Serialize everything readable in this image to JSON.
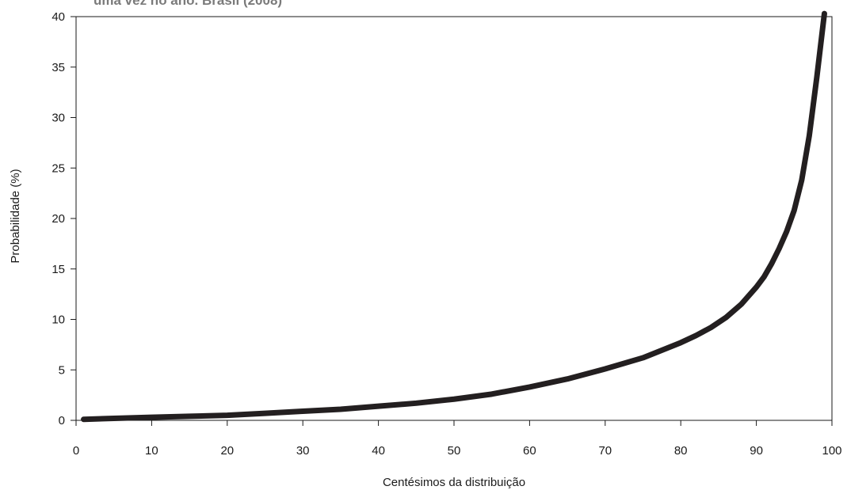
{
  "chart_data": {
    "type": "line",
    "title": "uma vez no ano. Brasil (2008)",
    "xlabel": "Centésimos da distribuição",
    "ylabel": "Probabilidade (%)",
    "xlim": [
      0,
      100
    ],
    "ylim": [
      0,
      40
    ],
    "xticks": [
      0,
      10,
      20,
      30,
      40,
      50,
      60,
      70,
      80,
      90,
      100
    ],
    "yticks": [
      0,
      5,
      10,
      15,
      20,
      25,
      30,
      35,
      40
    ],
    "grid": false,
    "line_color": "#231f20",
    "series": [
      {
        "x": [
          1,
          5,
          10,
          15,
          20,
          25,
          30,
          35,
          40,
          45,
          50,
          55,
          60,
          65,
          70,
          75,
          80,
          82,
          84,
          86,
          88,
          90,
          91,
          92,
          93,
          94,
          95,
          96,
          97,
          98,
          99
        ],
        "y": [
          0.1,
          0.2,
          0.3,
          0.4,
          0.5,
          0.7,
          0.9,
          1.1,
          1.4,
          1.7,
          2.1,
          2.6,
          3.3,
          4.1,
          5.1,
          6.2,
          7.7,
          8.4,
          9.2,
          10.2,
          11.5,
          13.2,
          14.2,
          15.5,
          17.0,
          18.7,
          20.8,
          23.8,
          28.2,
          34.0,
          40.3
        ]
      }
    ]
  }
}
